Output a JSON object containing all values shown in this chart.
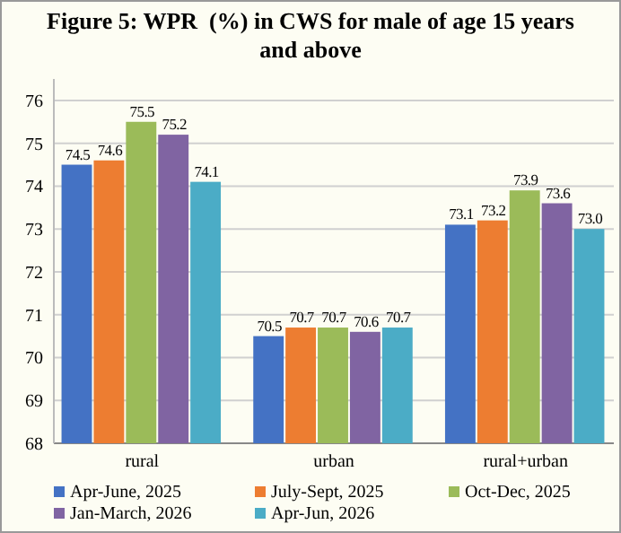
{
  "chart_data": {
    "type": "bar",
    "title": "Figure 5: WPR  (%) in CWS for male of age 15 years and above",
    "categories": [
      "rural",
      "urban",
      "rural+urban"
    ],
    "series": [
      {
        "name": "Apr-June, 2025",
        "color": "#4472c4",
        "values": [
          74.5,
          70.5,
          73.1
        ],
        "value_labels": [
          "74.5",
          "70.5",
          "73.1"
        ]
      },
      {
        "name": "July-Sept, 2025",
        "color": "#ed7d31",
        "values": [
          74.6,
          70.7,
          73.2
        ],
        "value_labels": [
          "74.6",
          "70.7",
          "73.2"
        ]
      },
      {
        "name": "Oct-Dec, 2025",
        "color": "#9bbb59",
        "values": [
          75.5,
          70.7,
          73.9
        ],
        "value_labels": [
          "75.5",
          "70.7",
          "73.9"
        ]
      },
      {
        "name": "Jan-March, 2026",
        "color": "#8064a2",
        "values": [
          75.2,
          70.6,
          73.6
        ],
        "value_labels": [
          "75.2",
          "70.6",
          "73.6"
        ]
      },
      {
        "name": "Apr-Jun, 2026",
        "color": "#4bacc6",
        "values": [
          74.1,
          70.7,
          73.0
        ],
        "value_labels": [
          "74.1",
          "70.7",
          "73.0"
        ]
      }
    ],
    "ylim": [
      68,
      76.5
    ],
    "yticks": [
      68,
      69,
      70,
      71,
      72,
      73,
      74,
      75,
      76
    ],
    "grid": "y",
    "legend": "bottom"
  }
}
